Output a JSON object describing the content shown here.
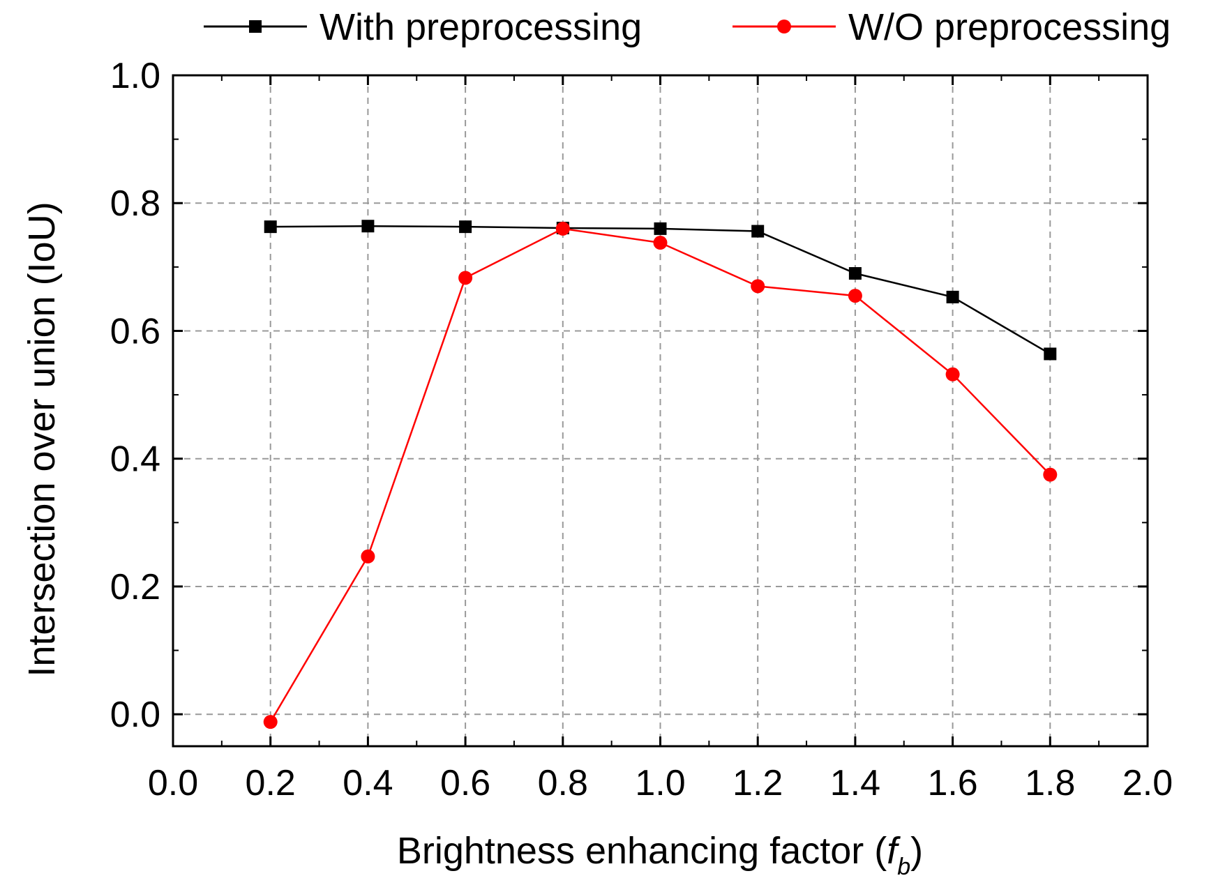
{
  "chart_data": {
    "type": "line",
    "title": "",
    "xlabel": "Brightness enhancing factor (",
    "xlabel_symbol": "f",
    "xlabel_subscript": "b",
    "xlabel_close": ")",
    "ylabel": "Intersection over union (IoU)",
    "xlim": [
      0.0,
      2.0
    ],
    "ylim": [
      -0.05,
      1.0
    ],
    "x_ticks": [
      0.0,
      0.2,
      0.4,
      0.6,
      0.8,
      1.0,
      1.2,
      1.4,
      1.6,
      1.8,
      2.0
    ],
    "x_tick_labels": [
      "0.0",
      "0.2",
      "0.4",
      "0.6",
      "0.8",
      "1.0",
      "1.2",
      "1.4",
      "1.6",
      "1.8",
      "2.0"
    ],
    "y_ticks": [
      0.0,
      0.2,
      0.4,
      0.6,
      0.8,
      1.0
    ],
    "y_tick_labels": [
      "0.0",
      "0.2",
      "0.4",
      "0.6",
      "0.8",
      "1.0"
    ],
    "grid": true,
    "legend_position": "top",
    "x": [
      0.2,
      0.4,
      0.6,
      0.8,
      1.0,
      1.2,
      1.4,
      1.6,
      1.8
    ],
    "series": [
      {
        "name": "With preprocessing",
        "color": "#000000",
        "marker": "square",
        "values": [
          0.763,
          0.764,
          0.763,
          0.761,
          0.76,
          0.756,
          0.69,
          0.653,
          0.564
        ]
      },
      {
        "name": "W/O preprocessing",
        "color": "#ff0000",
        "marker": "circle",
        "values": [
          -0.012,
          0.247,
          0.683,
          0.76,
          0.738,
          0.67,
          0.655,
          0.532,
          0.375
        ]
      }
    ]
  }
}
